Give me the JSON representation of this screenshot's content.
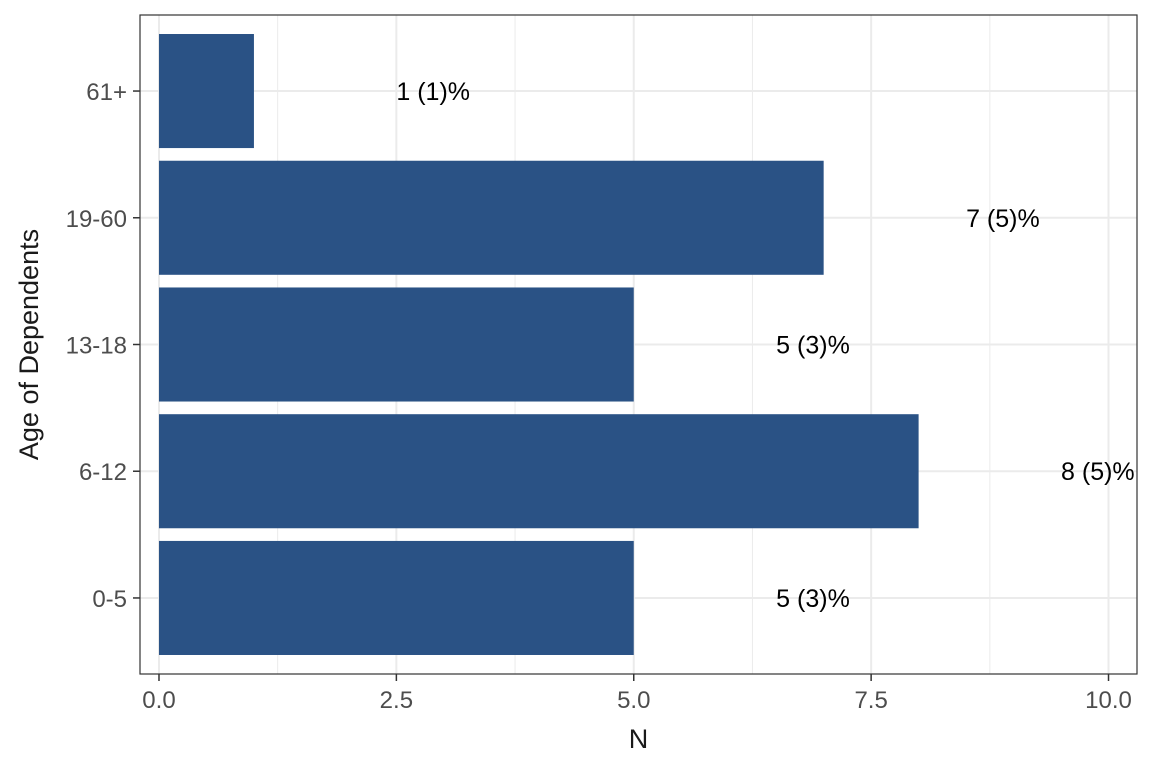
{
  "chart_data": {
    "type": "bar",
    "orientation": "horizontal",
    "categories": [
      "0-5",
      "6-12",
      "13-18",
      "19-60",
      "61+"
    ],
    "values": [
      5,
      8,
      5,
      7,
      1
    ],
    "data_labels": [
      "5 (3)%",
      "8 (5)%",
      "5 (3)%",
      "7 (5)%",
      "1 (1)%"
    ],
    "xlabel": "N",
    "ylabel": "Age of Dependents",
    "xlim": [
      -0.2,
      10.3
    ],
    "x_ticks": [
      0,
      2.5,
      5,
      7.5,
      10
    ],
    "x_tick_labels": [
      "0.0",
      "2.5",
      "5.0",
      "7.5",
      "10.0"
    ],
    "grid": true,
    "bar_color": "#2a5285",
    "grid_color": "#ebebeb",
    "panel_border_color": "#333333"
  }
}
